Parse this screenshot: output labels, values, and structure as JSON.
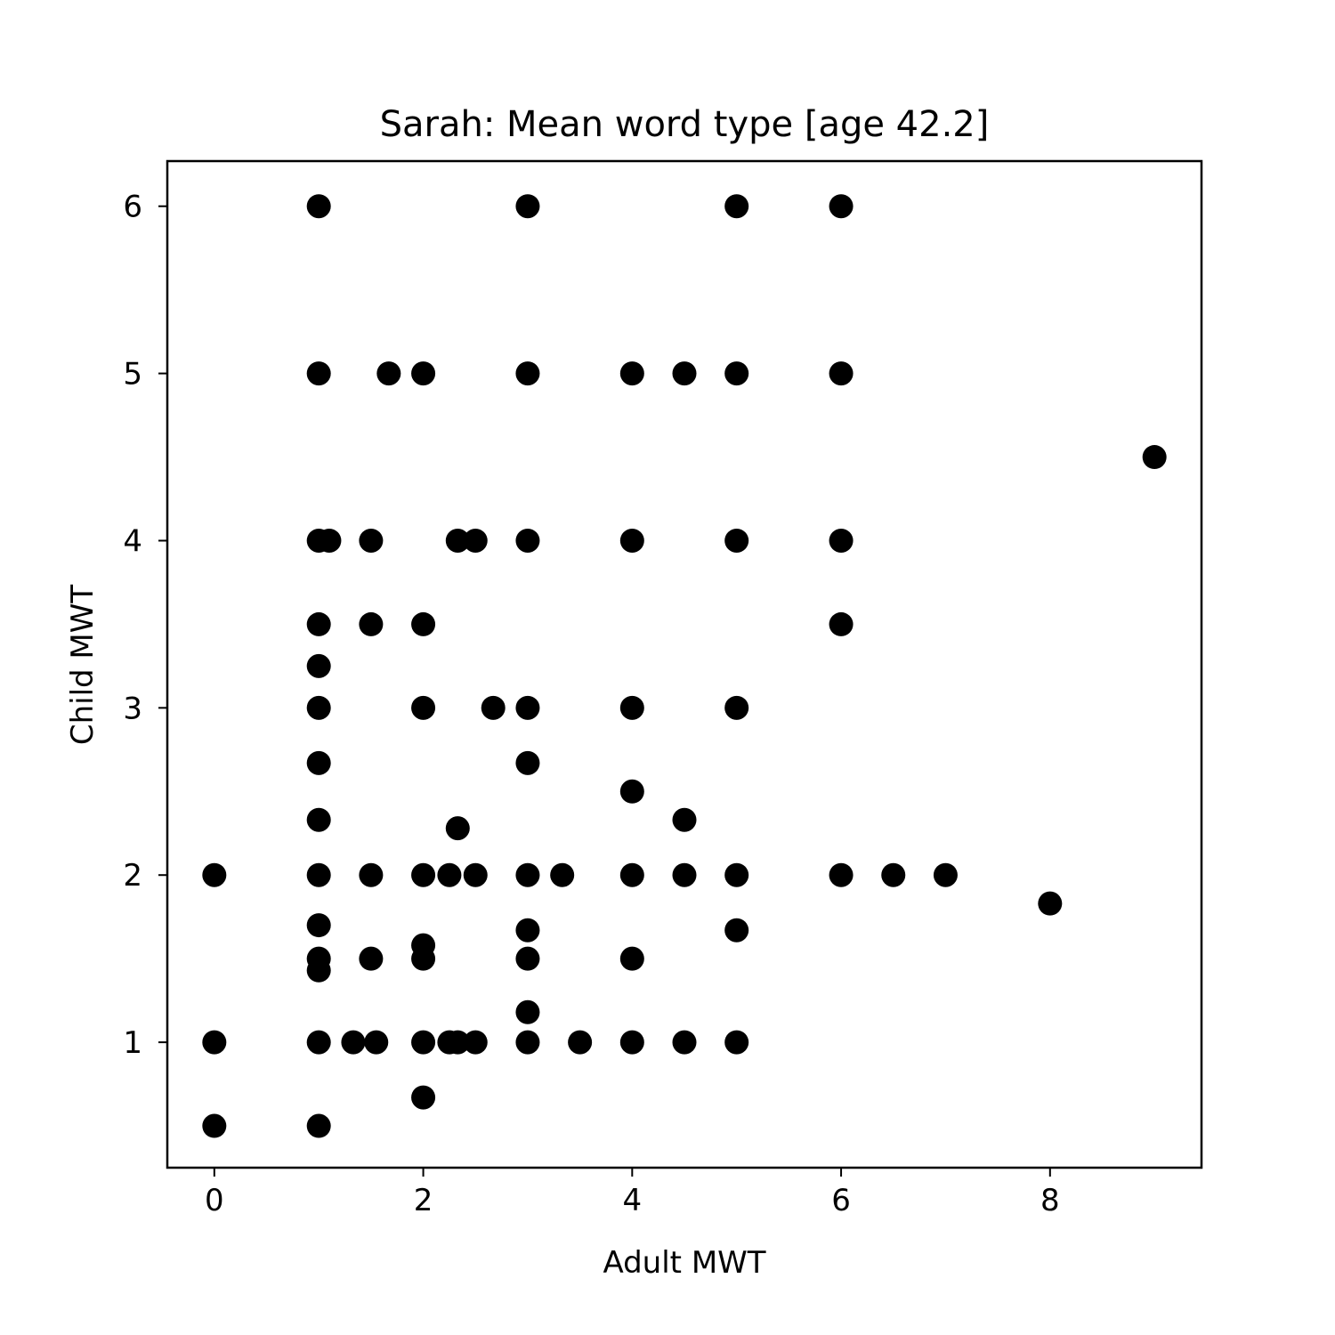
{
  "chart_data": {
    "type": "scatter",
    "title": "Sarah: Mean word type [age 42.2]",
    "xlabel": "Adult MWT",
    "ylabel": "Child MWT",
    "xlim": [
      -0.45,
      9.45
    ],
    "ylim": [
      0.25,
      6.27
    ],
    "xticks": [
      0,
      2,
      4,
      6,
      8
    ],
    "yticks": [
      1,
      2,
      3,
      4,
      5,
      6
    ],
    "grid": false,
    "marker_color": "#000000",
    "series": [
      {
        "points": [
          [
            0,
            2
          ],
          [
            0,
            1
          ],
          [
            0,
            0.5
          ],
          [
            1,
            6
          ],
          [
            1,
            5
          ],
          [
            1,
            4
          ],
          [
            1.1,
            4
          ],
          [
            1,
            3.5
          ],
          [
            1,
            3.25
          ],
          [
            1,
            3
          ],
          [
            1,
            2.67
          ],
          [
            1,
            2.33
          ],
          [
            1,
            2
          ],
          [
            1,
            1.7
          ],
          [
            1,
            1.5
          ],
          [
            1,
            1.43
          ],
          [
            1,
            1
          ],
          [
            1,
            0.5
          ],
          [
            1.33,
            1
          ],
          [
            1.5,
            4
          ],
          [
            1.5,
            3.5
          ],
          [
            1.5,
            2
          ],
          [
            1.5,
            1.5
          ],
          [
            1.55,
            1
          ],
          [
            1.67,
            5
          ],
          [
            2,
            5
          ],
          [
            2,
            3.5
          ],
          [
            2,
            3
          ],
          [
            2,
            2
          ],
          [
            2,
            1.58
          ],
          [
            2,
            1.5
          ],
          [
            2,
            1
          ],
          [
            2,
            0.67
          ],
          [
            2.25,
            2
          ],
          [
            2.25,
            1
          ],
          [
            2.33,
            4
          ],
          [
            2.33,
            2.28
          ],
          [
            2.33,
            1
          ],
          [
            2.5,
            4
          ],
          [
            2.5,
            2
          ],
          [
            2.5,
            1
          ],
          [
            2.67,
            3
          ],
          [
            3,
            6
          ],
          [
            3,
            5
          ],
          [
            3,
            4
          ],
          [
            3,
            3
          ],
          [
            3,
            2.67
          ],
          [
            3,
            2
          ],
          [
            3,
            1.67
          ],
          [
            3,
            1.5
          ],
          [
            3,
            1.18
          ],
          [
            3,
            1
          ],
          [
            3.33,
            2
          ],
          [
            3.5,
            1
          ],
          [
            4,
            5
          ],
          [
            4,
            4
          ],
          [
            4,
            3
          ],
          [
            4,
            2.5
          ],
          [
            4,
            2
          ],
          [
            4,
            1.5
          ],
          [
            4,
            1
          ],
          [
            4.5,
            5
          ],
          [
            4.5,
            2.33
          ],
          [
            4.5,
            2
          ],
          [
            4.5,
            1
          ],
          [
            5,
            6
          ],
          [
            5,
            5
          ],
          [
            5,
            4
          ],
          [
            5,
            3
          ],
          [
            5,
            2
          ],
          [
            5,
            1.67
          ],
          [
            5,
            1
          ],
          [
            6,
            6
          ],
          [
            6,
            5
          ],
          [
            6,
            4
          ],
          [
            6,
            3.5
          ],
          [
            6,
            2
          ],
          [
            6.5,
            2
          ],
          [
            7,
            2
          ],
          [
            8,
            1.83
          ],
          [
            9,
            4.5
          ]
        ]
      }
    ]
  }
}
